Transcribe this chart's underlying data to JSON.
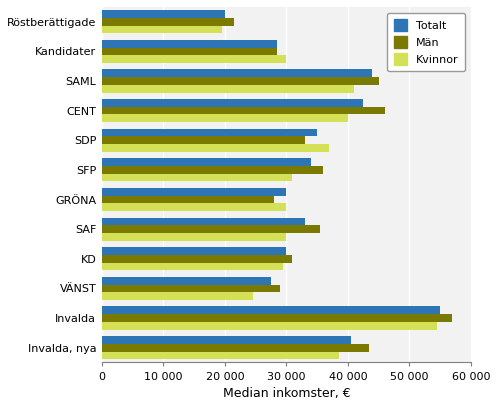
{
  "categories": [
    "Röstberättigade",
    "Kandidater",
    "SAML",
    "CENT",
    "SDP",
    "SFP",
    "GRÖNA",
    "SAF",
    "KD",
    "VÄNST",
    "Invalda",
    "Invalda, nya"
  ],
  "totalt": [
    20000,
    28500,
    44000,
    42500,
    35000,
    34000,
    30000,
    33000,
    30000,
    27500,
    55000,
    40500
  ],
  "man": [
    21500,
    28500,
    45000,
    46000,
    33000,
    36000,
    28000,
    35500,
    31000,
    29000,
    57000,
    43500
  ],
  "kvinnor": [
    19500,
    30000,
    41000,
    40000,
    37000,
    31000,
    30000,
    30000,
    29500,
    24500,
    54500,
    38500
  ],
  "color_totalt": "#2E75B6",
  "color_man": "#7A7A00",
  "color_kvinnor": "#D4E157",
  "xlabel": "Median inkomster, €",
  "xlim": [
    0,
    60000
  ],
  "xticks": [
    0,
    10000,
    20000,
    30000,
    40000,
    50000,
    60000
  ],
  "xtick_labels": [
    "0",
    "10 000",
    "20 000",
    "30 000",
    "40 000",
    "50 000",
    "60 000"
  ],
  "legend_labels": [
    "Totalt",
    "Män",
    "Kvinnor"
  ],
  "bar_height": 0.26,
  "figsize": [
    4.97,
    4.07
  ],
  "dpi": 100
}
